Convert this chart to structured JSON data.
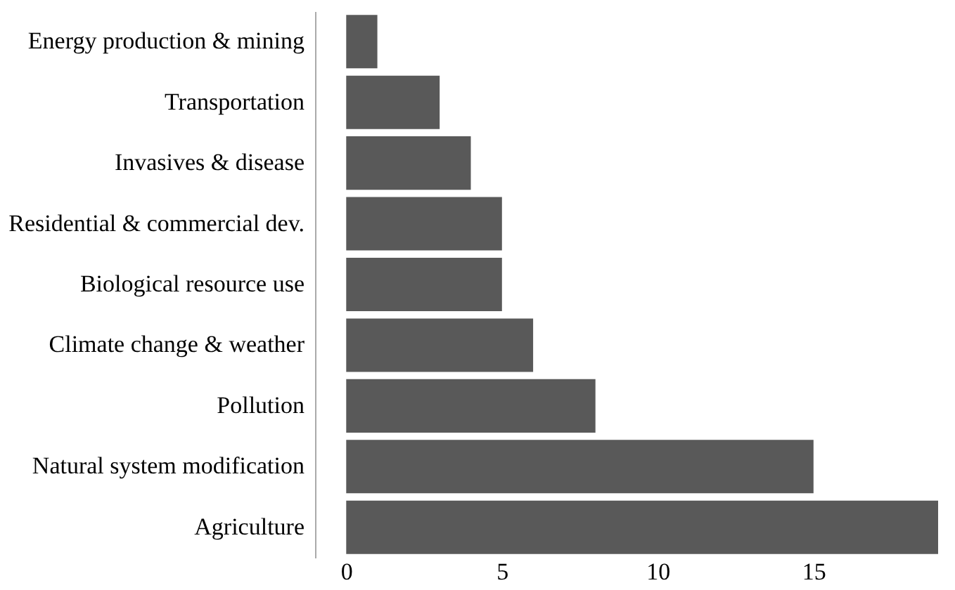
{
  "chart_data": {
    "type": "bar",
    "orientation": "horizontal",
    "categories": [
      "Energy production & mining",
      "Transportation",
      "Invasives & disease",
      "Residential & commercial dev.",
      "Biological resource use",
      "Climate change & weather",
      "Pollution",
      "Natural system modification",
      "Agriculture"
    ],
    "values": [
      1,
      3,
      4,
      5,
      5,
      6,
      8,
      15,
      19
    ],
    "color": "#595959",
    "xlim": [
      -1,
      19
    ],
    "xticks": [
      0,
      5,
      10,
      15
    ],
    "grid": false
  }
}
